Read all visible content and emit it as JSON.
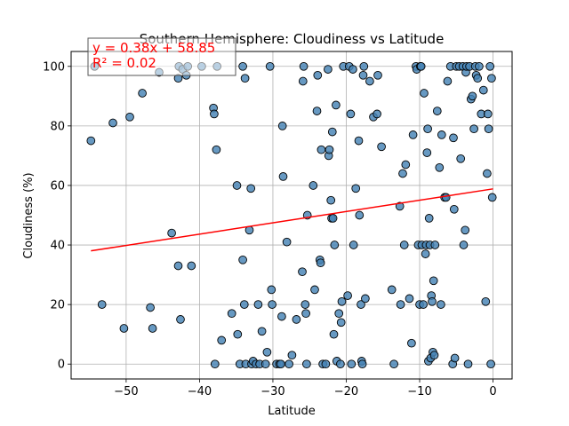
{
  "chart_data": {
    "type": "scatter",
    "title": "Southern Hemisphere: Cloudiness vs Latitude",
    "xlabel": "Latitude",
    "ylabel": "Cloudiness (%)",
    "xlim": [
      -57.5,
      2.6
    ],
    "ylim": [
      -5,
      105
    ],
    "xticks": [
      -50,
      -40,
      -30,
      -20,
      -10,
      0
    ],
    "yticks": [
      0,
      20,
      40,
      60,
      80,
      100
    ],
    "xtick_labels": [
      "−50",
      "−40",
      "−30",
      "−20",
      "−10",
      "0"
    ],
    "ytick_labels": [
      "0",
      "20",
      "40",
      "60",
      "80",
      "100"
    ],
    "grid": true,
    "marker_color": "#4682b4",
    "marker_edge_color": "#000000",
    "line_color": "#ff0000",
    "regression": {
      "slope": 0.38,
      "intercept": 58.85,
      "x_start": -54.8,
      "x_end": 0.0,
      "equation": "y = 0.38x + 58.85",
      "r_squared": "R² = 0.02"
    },
    "points": [
      [
        -54.8,
        75
      ],
      [
        -54.3,
        100
      ],
      [
        -53.3,
        20
      ],
      [
        -51.8,
        81
      ],
      [
        -50.3,
        12
      ],
      [
        -49.5,
        83
      ],
      [
        -47.8,
        91
      ],
      [
        -46.7,
        19
      ],
      [
        -46.4,
        12
      ],
      [
        -45.5,
        98
      ],
      [
        -43.8,
        44
      ],
      [
        -42.9,
        96
      ],
      [
        -42.9,
        33
      ],
      [
        -42.8,
        100
      ],
      [
        -42.6,
        15
      ],
      [
        -42.3,
        99
      ],
      [
        -41.8,
        97
      ],
      [
        -41.6,
        100
      ],
      [
        -41.1,
        33
      ],
      [
        -39.7,
        100
      ],
      [
        -38.1,
        86
      ],
      [
        -38.0,
        84
      ],
      [
        -37.9,
        0
      ],
      [
        -37.7,
        72
      ],
      [
        -37.6,
        100
      ],
      [
        -37.0,
        8
      ],
      [
        -35.6,
        17
      ],
      [
        -34.9,
        60
      ],
      [
        -34.8,
        10
      ],
      [
        -34.5,
        0
      ],
      [
        -34.1,
        100
      ],
      [
        -34.1,
        35
      ],
      [
        -33.9,
        20
      ],
      [
        -33.8,
        96
      ],
      [
        -33.7,
        0
      ],
      [
        -33.2,
        45
      ],
      [
        -33.0,
        59
      ],
      [
        -32.9,
        0
      ],
      [
        -32.7,
        1
      ],
      [
        -32.3,
        0
      ],
      [
        -32.0,
        20
      ],
      [
        -31.8,
        0
      ],
      [
        -31.5,
        11
      ],
      [
        -31.0,
        0
      ],
      [
        -30.8,
        4
      ],
      [
        -30.4,
        100
      ],
      [
        -30.2,
        25
      ],
      [
        -30.1,
        20
      ],
      [
        -29.5,
        0
      ],
      [
        -29.1,
        0
      ],
      [
        -28.9,
        0
      ],
      [
        -28.8,
        16
      ],
      [
        -28.7,
        80
      ],
      [
        -28.6,
        63
      ],
      [
        -28.1,
        41
      ],
      [
        -27.8,
        0
      ],
      [
        -27.4,
        3
      ],
      [
        -26.8,
        15
      ],
      [
        -26.0,
        31
      ],
      [
        -25.9,
        95
      ],
      [
        -25.8,
        100
      ],
      [
        -25.6,
        20
      ],
      [
        -25.5,
        17
      ],
      [
        -25.4,
        0
      ],
      [
        -25.3,
        50
      ],
      [
        -24.5,
        60
      ],
      [
        -24.3,
        25
      ],
      [
        -24.0,
        85
      ],
      [
        -23.9,
        97
      ],
      [
        -23.6,
        35
      ],
      [
        -23.5,
        34
      ],
      [
        -23.4,
        72
      ],
      [
        -23.2,
        0
      ],
      [
        -22.8,
        0
      ],
      [
        -22.5,
        99
      ],
      [
        -22.4,
        70
      ],
      [
        -22.3,
        72
      ],
      [
        -22.1,
        55
      ],
      [
        -22.0,
        49
      ],
      [
        -21.9,
        78
      ],
      [
        -21.8,
        49
      ],
      [
        -21.7,
        10
      ],
      [
        -21.6,
        40
      ],
      [
        -21.4,
        87
      ],
      [
        -21.3,
        1
      ],
      [
        -21.0,
        17
      ],
      [
        -20.8,
        0
      ],
      [
        -20.7,
        14
      ],
      [
        -20.6,
        21
      ],
      [
        -20.4,
        100
      ],
      [
        -19.8,
        23
      ],
      [
        -19.6,
        100
      ],
      [
        -19.4,
        84
      ],
      [
        -19.3,
        0
      ],
      [
        -19.1,
        99
      ],
      [
        -19.0,
        40
      ],
      [
        -18.7,
        59
      ],
      [
        -18.3,
        75
      ],
      [
        -18.2,
        50
      ],
      [
        -18.0,
        20
      ],
      [
        -17.9,
        1
      ],
      [
        -17.8,
        0
      ],
      [
        -17.7,
        97
      ],
      [
        -17.6,
        100
      ],
      [
        -17.4,
        22
      ],
      [
        -16.8,
        95
      ],
      [
        -16.3,
        83
      ],
      [
        -15.8,
        84
      ],
      [
        -15.7,
        97
      ],
      [
        -15.2,
        73
      ],
      [
        -13.8,
        25
      ],
      [
        -13.5,
        0
      ],
      [
        -12.7,
        53
      ],
      [
        -12.6,
        20
      ],
      [
        -12.3,
        64
      ],
      [
        -12.1,
        40
      ],
      [
        -11.9,
        67
      ],
      [
        -11.4,
        22
      ],
      [
        -11.1,
        7
      ],
      [
        -10.9,
        77
      ],
      [
        -10.5,
        100
      ],
      [
        -10.4,
        99
      ],
      [
        -10.2,
        40
      ],
      [
        -10.0,
        20
      ],
      [
        -9.9,
        100
      ],
      [
        -9.8,
        100
      ],
      [
        -9.7,
        40
      ],
      [
        -9.5,
        20
      ],
      [
        -9.4,
        91
      ],
      [
        -9.2,
        37
      ],
      [
        -9.1,
        40
      ],
      [
        -9.0,
        71
      ],
      [
        -8.9,
        79
      ],
      [
        -8.8,
        1
      ],
      [
        -8.7,
        49
      ],
      [
        -8.6,
        40
      ],
      [
        -8.5,
        2
      ],
      [
        -8.4,
        23
      ],
      [
        -8.3,
        21
      ],
      [
        -8.2,
        4
      ],
      [
        -8.1,
        28
      ],
      [
        -8.0,
        3
      ],
      [
        -7.9,
        40
      ],
      [
        -7.6,
        85
      ],
      [
        -7.3,
        66
      ],
      [
        -7.1,
        20
      ],
      [
        -7.0,
        77
      ],
      [
        -6.6,
        56
      ],
      [
        -6.4,
        56
      ],
      [
        -6.2,
        95
      ],
      [
        -5.8,
        100
      ],
      [
        -5.5,
        0
      ],
      [
        -5.4,
        76
      ],
      [
        -5.3,
        52
      ],
      [
        -5.2,
        2
      ],
      [
        -5.0,
        100
      ],
      [
        -4.6,
        100
      ],
      [
        -4.4,
        69
      ],
      [
        -4.1,
        100
      ],
      [
        -4.0,
        40
      ],
      [
        -3.8,
        45
      ],
      [
        -3.7,
        98
      ],
      [
        -3.6,
        100
      ],
      [
        -3.4,
        0
      ],
      [
        -3.2,
        100
      ],
      [
        -3.0,
        89
      ],
      [
        -2.8,
        90
      ],
      [
        -2.6,
        79
      ],
      [
        -2.4,
        100
      ],
      [
        -2.3,
        97
      ],
      [
        -2.1,
        96
      ],
      [
        -1.9,
        100
      ],
      [
        -1.6,
        84
      ],
      [
        -1.3,
        92
      ],
      [
        -1.0,
        21
      ],
      [
        -0.8,
        64
      ],
      [
        -0.7,
        84
      ],
      [
        -0.6,
        79
      ],
      [
        -0.4,
        100
      ],
      [
        -0.3,
        0
      ],
      [
        -0.2,
        96
      ],
      [
        -0.1,
        56
      ]
    ]
  }
}
